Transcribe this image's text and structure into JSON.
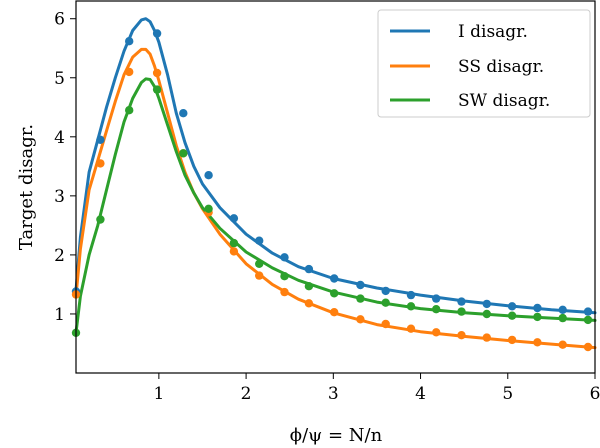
{
  "chart_data": {
    "type": "line",
    "xlabel": "ϕ/ψ = N/n",
    "ylabel": "Target disagr.",
    "xlim": [
      0.05,
      6.0
    ],
    "ylim": [
      0.0,
      6.3
    ],
    "xticks": [
      1,
      2,
      3,
      4,
      5,
      6
    ],
    "yticks": [
      1,
      2,
      3,
      4,
      5,
      6
    ],
    "grid": false,
    "legend_position": "top-right",
    "series": [
      {
        "name": "I disagr.",
        "color": "#1f77b4",
        "curve": {
          "x": [
            0.05,
            0.1,
            0.2,
            0.3,
            0.4,
            0.5,
            0.6,
            0.7,
            0.8,
            0.85,
            0.9,
            0.95,
            1.0,
            1.1,
            1.2,
            1.3,
            1.4,
            1.5,
            1.7,
            2.0,
            2.3,
            2.6,
            3.0,
            3.5,
            4.0,
            4.5,
            5.0,
            5.5,
            6.0
          ],
          "y": [
            1.4,
            2.3,
            3.4,
            3.95,
            4.5,
            5.0,
            5.45,
            5.8,
            5.98,
            6.0,
            5.95,
            5.8,
            5.6,
            5.05,
            4.4,
            3.9,
            3.5,
            3.2,
            2.8,
            2.35,
            2.03,
            1.8,
            1.6,
            1.44,
            1.32,
            1.22,
            1.14,
            1.07,
            1.02
          ]
        },
        "points": {
          "x": [
            0.05,
            0.33,
            0.66,
            0.98,
            1.28,
            1.57,
            1.86,
            2.15,
            2.44,
            2.72,
            3.01,
            3.31,
            3.6,
            3.89,
            4.18,
            4.47,
            4.76,
            5.05,
            5.34,
            5.63,
            5.92
          ],
          "y": [
            1.38,
            3.95,
            5.62,
            5.75,
            4.4,
            3.35,
            2.62,
            2.24,
            1.96,
            1.76,
            1.6,
            1.49,
            1.39,
            1.32,
            1.26,
            1.21,
            1.17,
            1.13,
            1.1,
            1.07,
            1.04
          ]
        }
      },
      {
        "name": "SS disagr.",
        "color": "#ff7f0e",
        "curve": {
          "x": [
            0.05,
            0.1,
            0.2,
            0.3,
            0.4,
            0.5,
            0.6,
            0.7,
            0.8,
            0.85,
            0.9,
            0.95,
            1.0,
            1.1,
            1.2,
            1.3,
            1.4,
            1.5,
            1.7,
            2.0,
            2.3,
            2.6,
            3.0,
            3.5,
            4.0,
            4.5,
            5.0,
            5.5,
            6.0
          ],
          "y": [
            1.3,
            2.1,
            3.1,
            3.6,
            4.1,
            4.6,
            5.05,
            5.35,
            5.48,
            5.48,
            5.4,
            5.2,
            4.95,
            4.4,
            3.85,
            3.4,
            3.05,
            2.78,
            2.35,
            1.85,
            1.5,
            1.25,
            1.02,
            0.82,
            0.7,
            0.62,
            0.55,
            0.49,
            0.43
          ]
        },
        "points": {
          "x": [
            0.05,
            0.33,
            0.66,
            0.98,
            1.28,
            1.57,
            1.86,
            2.15,
            2.44,
            2.72,
            3.01,
            3.31,
            3.6,
            3.89,
            4.18,
            4.47,
            4.76,
            5.05,
            5.34,
            5.63,
            5.92
          ],
          "y": [
            1.33,
            3.55,
            5.1,
            5.08,
            3.72,
            2.72,
            2.06,
            1.65,
            1.37,
            1.18,
            1.03,
            0.91,
            0.83,
            0.75,
            0.69,
            0.64,
            0.6,
            0.56,
            0.52,
            0.48,
            0.44
          ]
        }
      },
      {
        "name": "SW disagr.",
        "color": "#2ca02c",
        "curve": {
          "x": [
            0.05,
            0.1,
            0.2,
            0.3,
            0.4,
            0.5,
            0.6,
            0.7,
            0.8,
            0.85,
            0.9,
            0.95,
            1.0,
            1.1,
            1.2,
            1.3,
            1.4,
            1.5,
            1.7,
            2.0,
            2.3,
            2.6,
            3.0,
            3.5,
            4.0,
            4.5,
            5.0,
            5.5,
            6.0
          ],
          "y": [
            0.68,
            1.3,
            2.0,
            2.5,
            3.1,
            3.7,
            4.25,
            4.65,
            4.92,
            4.98,
            4.97,
            4.85,
            4.65,
            4.2,
            3.75,
            3.35,
            3.05,
            2.8,
            2.45,
            2.05,
            1.78,
            1.57,
            1.37,
            1.2,
            1.09,
            1.02,
            0.97,
            0.93,
            0.89
          ]
        },
        "points": {
          "x": [
            0.05,
            0.33,
            0.66,
            0.98,
            1.28,
            1.57,
            1.86,
            2.15,
            2.44,
            2.72,
            3.01,
            3.31,
            3.6,
            3.89,
            4.18,
            4.47,
            4.76,
            5.05,
            5.34,
            5.63,
            5.92
          ],
          "y": [
            0.68,
            2.6,
            4.45,
            4.8,
            3.72,
            2.78,
            2.2,
            1.85,
            1.64,
            1.47,
            1.35,
            1.26,
            1.19,
            1.13,
            1.08,
            1.04,
            1.0,
            0.97,
            0.95,
            0.93,
            0.9
          ]
        }
      }
    ]
  }
}
